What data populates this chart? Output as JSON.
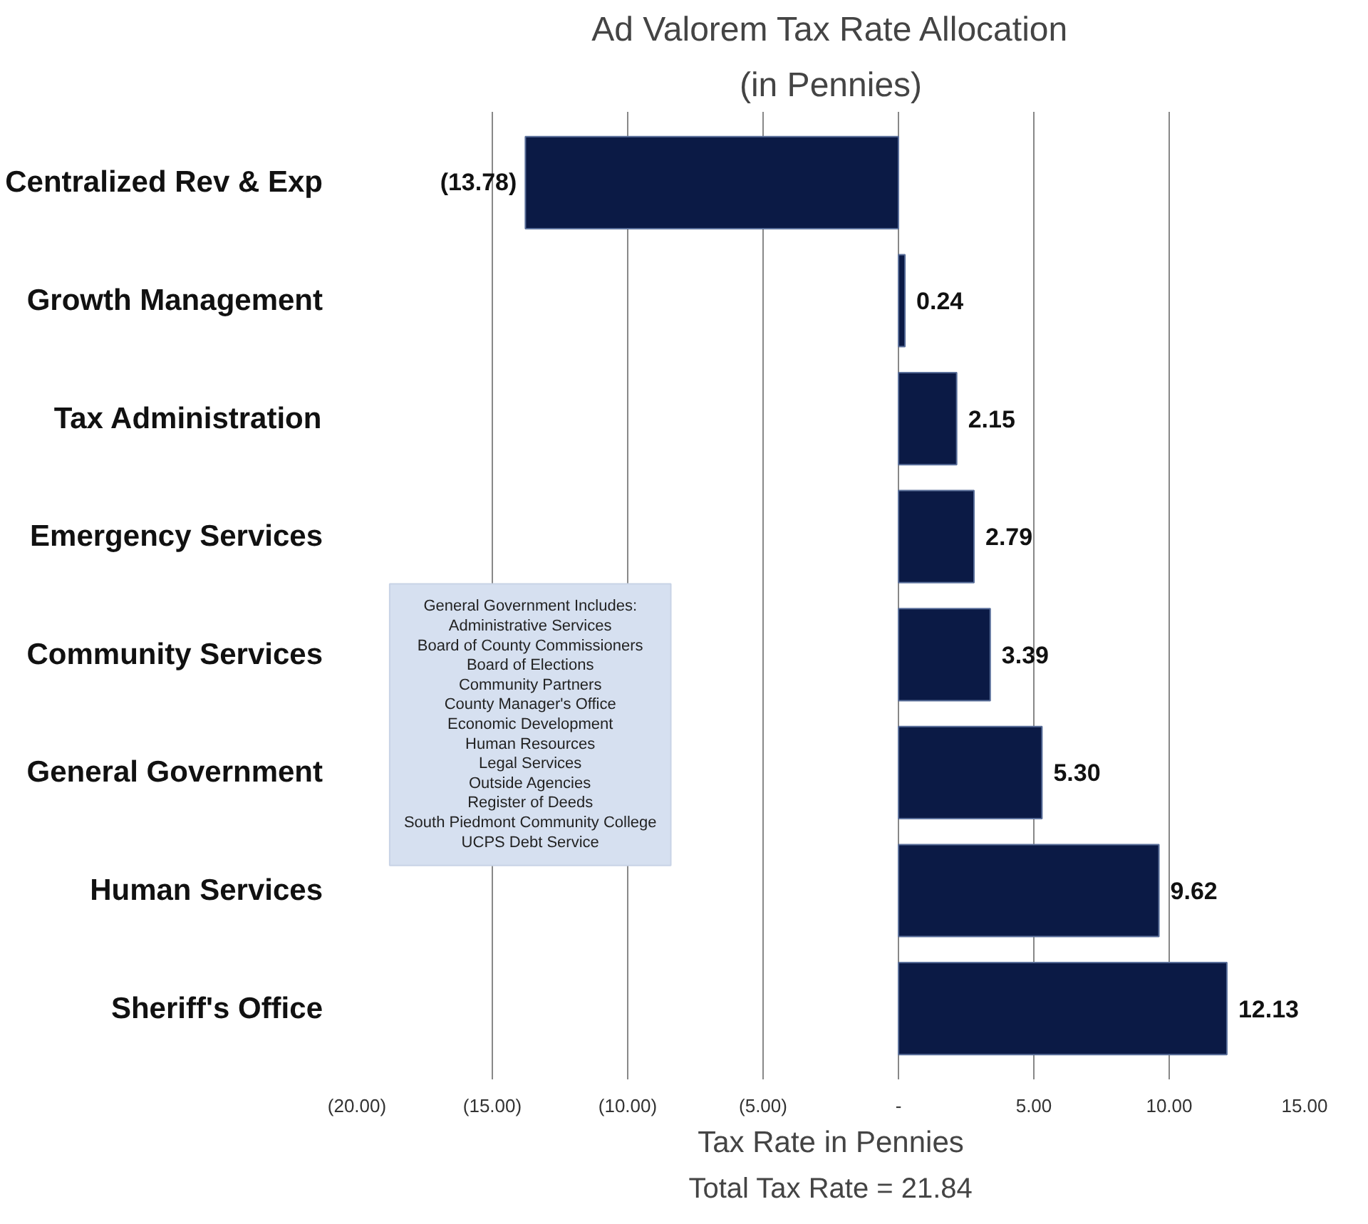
{
  "chart_data": {
    "type": "bar",
    "orientation": "horizontal",
    "title": "Ad Valorem Tax Rate Allocation",
    "subtitle": "(in Pennies)",
    "xlabel": "Tax Rate in Pennies",
    "categories": [
      "Centralized Rev & Exp",
      "Growth Management",
      "Tax Administration",
      "Emergency Services",
      "Community Services",
      "General Government",
      "Human Services",
      "Sheriff's Office"
    ],
    "values": [
      -13.78,
      0.24,
      2.15,
      2.79,
      3.39,
      5.3,
      9.62,
      12.13
    ],
    "value_labels": [
      "(13.78)",
      "0.24",
      "2.15",
      "2.79",
      "3.39",
      "5.30",
      "9.62",
      "12.13"
    ],
    "color": "#0b1a45",
    "xlim": [
      -20,
      15
    ],
    "xticks": [
      {
        "value": -20,
        "label": "(20.00)"
      },
      {
        "value": -15,
        "label": "(15.00)"
      },
      {
        "value": -10,
        "label": "(10.00)"
      },
      {
        "value": -5,
        "label": "(5.00)"
      },
      {
        "value": 0,
        "label": "-"
      },
      {
        "value": 5,
        "label": "5.00"
      },
      {
        "value": 10,
        "label": "10.00"
      },
      {
        "value": 15,
        "label": "15.00"
      }
    ],
    "grid": "x",
    "annotations": [
      "General Government Includes:\nAdministrative Services\nBoard of County Commissioners\nBoard of Elections\nCommunity Partners\nCounty Manager's Office\nEconomic Development\nHuman Resources\nLegal Services\nOutside Agencies\nRegister of Deeds\nSouth Piedmont Community College\nUCPS Debt Service",
      "Total Tax Rate = 21.84"
    ]
  }
}
